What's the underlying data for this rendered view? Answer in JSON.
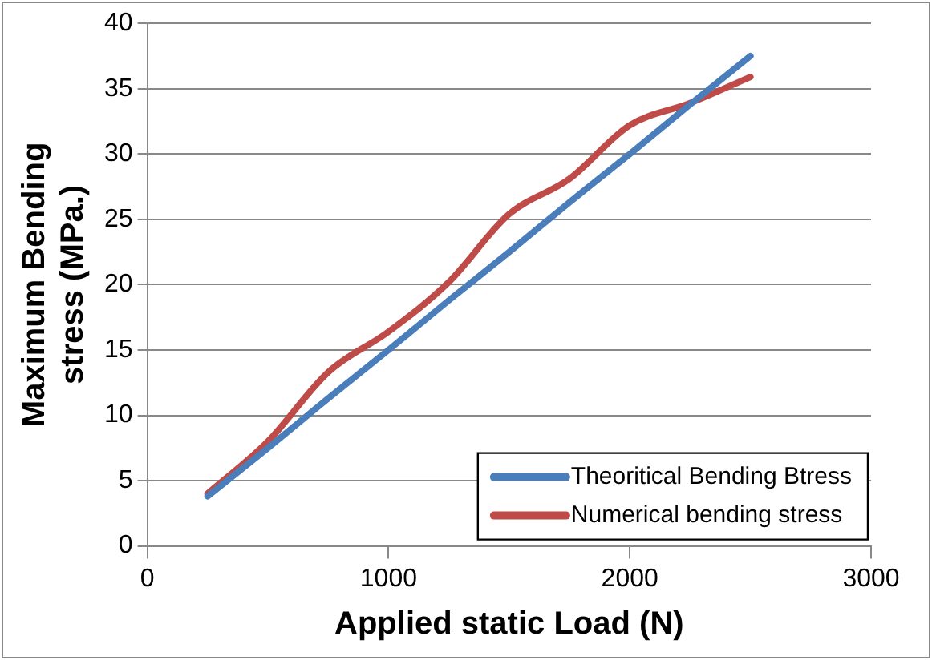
{
  "chart_data": {
    "type": "line",
    "xlabel": "Applied static Load (N)",
    "ylabel": "Maximum Bending stress (MPa.)",
    "xlim": [
      0,
      3000
    ],
    "xticks": [
      0,
      1000,
      2000,
      3000
    ],
    "ylim": [
      0,
      40
    ],
    "yticks": [
      0,
      5,
      10,
      15,
      20,
      25,
      30,
      35,
      40
    ],
    "grid": "y",
    "legend": "bottom right",
    "marker": "none",
    "line_style": "solid",
    "series": [
      {
        "name": "Theoritical Bending Btress",
        "color": "#4a7ebb",
        "x": [
          250,
          500,
          750,
          1000,
          1250,
          1500,
          1750,
          2000,
          2250,
          2500
        ],
        "values": [
          3.8,
          7.5,
          11.3,
          15,
          18.8,
          22.5,
          26.3,
          30,
          33.8,
          37.5
        ]
      },
      {
        "name": "Numerical bending stress",
        "color": "#be4b48",
        "x": [
          250,
          500,
          750,
          1000,
          1250,
          1500,
          1750,
          2000,
          2250,
          2500
        ],
        "values": [
          4,
          8,
          13.3,
          16.4,
          20.2,
          25.4,
          28.1,
          32.2,
          33.9,
          35.9
        ]
      }
    ]
  }
}
